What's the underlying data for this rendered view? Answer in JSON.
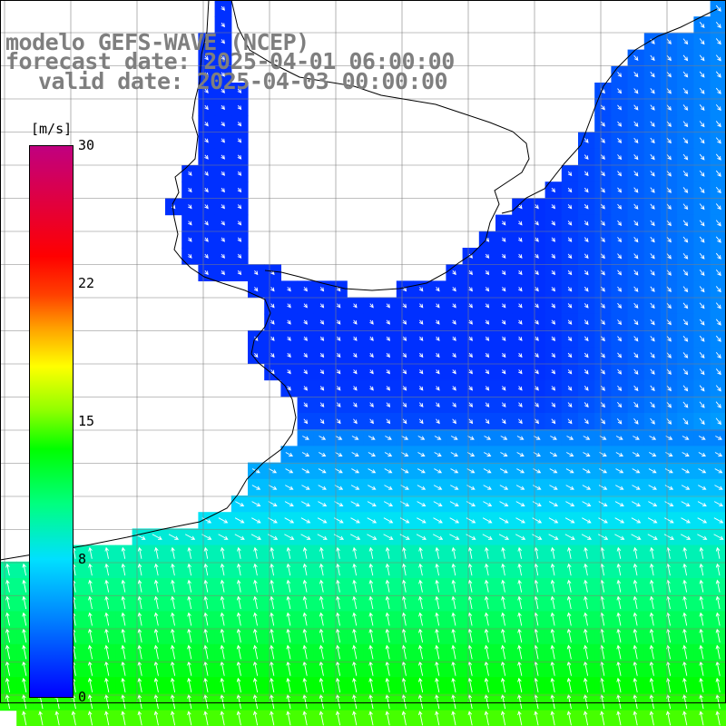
{
  "title": {
    "line1": "modelo GEFS-WAVE (NCEP)",
    "line2": "forecast date: 2025-04-01 06:00:00",
    "line3": "valid date: 2025-04-03 00:00:00"
  },
  "colorbar": {
    "unit": "[m/s]",
    "ticks": [
      "30",
      "22",
      "15",
      "8",
      "0"
    ],
    "min": 0,
    "max": 30,
    "colors": [
      "#0000ff",
      "#0080ff",
      "#00e0ff",
      "#00ff80",
      "#00ff00",
      "#90ff00",
      "#ffff00",
      "#ffa000",
      "#ff4000",
      "#ff0000",
      "#e00040",
      "#c00080"
    ]
  },
  "map": {
    "land_color": "#ffffff",
    "coastline_color": "#000000",
    "grid_color": "#808080",
    "vector_color": "#ffffff"
  }
}
